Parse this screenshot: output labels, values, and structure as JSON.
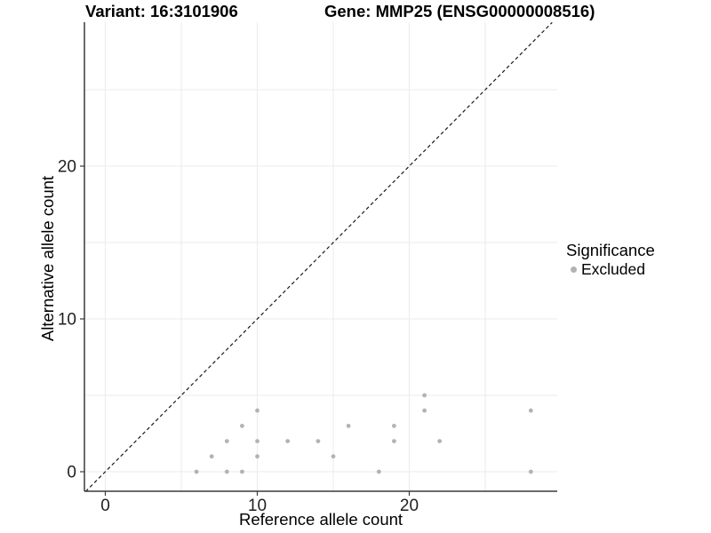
{
  "titles": {
    "variant": "Variant: 16:3101906",
    "gene": "Gene: MMP25 (ENSG00000008516)"
  },
  "legend": {
    "title": "Significance",
    "items": [
      {
        "label": "Excluded",
        "color": "#b3b3b3"
      }
    ]
  },
  "colors": {
    "background": "#ffffff",
    "point": "#b3b3b3",
    "grid": "#ebebeb",
    "axis_line": "#3a3a3a",
    "tick_text": "#1f1f1f",
    "identity_line": "#1a1a1a",
    "title_text": "#000000"
  },
  "chart_data": {
    "type": "scatter",
    "title": "Variant: 16:3101906 / Gene: MMP25 (ENSG00000008516)",
    "xlabel": "Reference allele count",
    "ylabel": "Alternative allele count",
    "xlim": [
      -1.4,
      29.6
    ],
    "ylim": [
      -1.4,
      29.6
    ],
    "x_ticks": [
      0,
      10,
      20
    ],
    "y_ticks": [
      0,
      10,
      20
    ],
    "x_gridlines": [
      0,
      5,
      10,
      15,
      20,
      25
    ],
    "y_gridlines": [
      0,
      5,
      10,
      15,
      20,
      25
    ],
    "grid": true,
    "legend_position": "right",
    "identity_line": {
      "type": "abline",
      "slope": 1,
      "intercept": 0,
      "style": "dashed"
    },
    "series": [
      {
        "name": "Excluded",
        "color": "#b3b3b3",
        "points": [
          [
            6,
            0
          ],
          [
            8,
            0
          ],
          [
            9,
            0
          ],
          [
            18,
            0
          ],
          [
            28,
            0
          ],
          [
            7,
            1
          ],
          [
            10,
            1
          ],
          [
            15,
            1
          ],
          [
            8,
            2
          ],
          [
            10,
            2
          ],
          [
            12,
            2
          ],
          [
            14,
            2
          ],
          [
            19,
            2
          ],
          [
            22,
            2
          ],
          [
            9,
            3
          ],
          [
            16,
            3
          ],
          [
            19,
            3
          ],
          [
            10,
            4
          ],
          [
            21,
            4
          ],
          [
            28,
            4
          ],
          [
            21,
            5
          ]
        ]
      }
    ]
  }
}
